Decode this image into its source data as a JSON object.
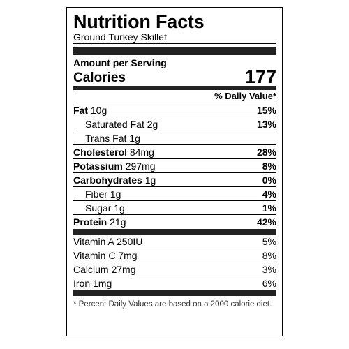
{
  "title": "Nutrition Facts",
  "subtitle": "Ground Turkey Skillet",
  "amount_label": "Amount per Serving",
  "calories": {
    "label": "Calories",
    "value": "177"
  },
  "dv_header": "% Daily Value*",
  "nutrients": [
    {
      "name": "Fat",
      "amount": "10g",
      "dv": "15%"
    },
    {
      "name": "Saturated Fat",
      "amount": "2g",
      "dv": "13%"
    },
    {
      "name": "Trans Fat",
      "amount": "1g",
      "dv": ""
    },
    {
      "name": "Cholesterol",
      "amount": "84mg",
      "dv": "28%"
    },
    {
      "name": "Potassium",
      "amount": "297mg",
      "dv": "8%"
    },
    {
      "name": "Carbohydrates",
      "amount": "1g",
      "dv": "0%"
    },
    {
      "name": "Fiber",
      "amount": "1g",
      "dv": "4%"
    },
    {
      "name": "Sugar",
      "amount": "1g",
      "dv": "1%"
    },
    {
      "name": "Protein",
      "amount": "21g",
      "dv": "42%"
    }
  ],
  "vitamins": [
    {
      "name": "Vitamin A",
      "amount": "250IU",
      "dv": "5%"
    },
    {
      "name": "Vitamin C",
      "amount": "7mg",
      "dv": "8%"
    },
    {
      "name": "Calcium",
      "amount": "27mg",
      "dv": "3%"
    },
    {
      "name": "Iron",
      "amount": "1mg",
      "dv": "6%"
    }
  ],
  "footnote": "* Percent Daily Values are based on a 2000 calorie diet."
}
